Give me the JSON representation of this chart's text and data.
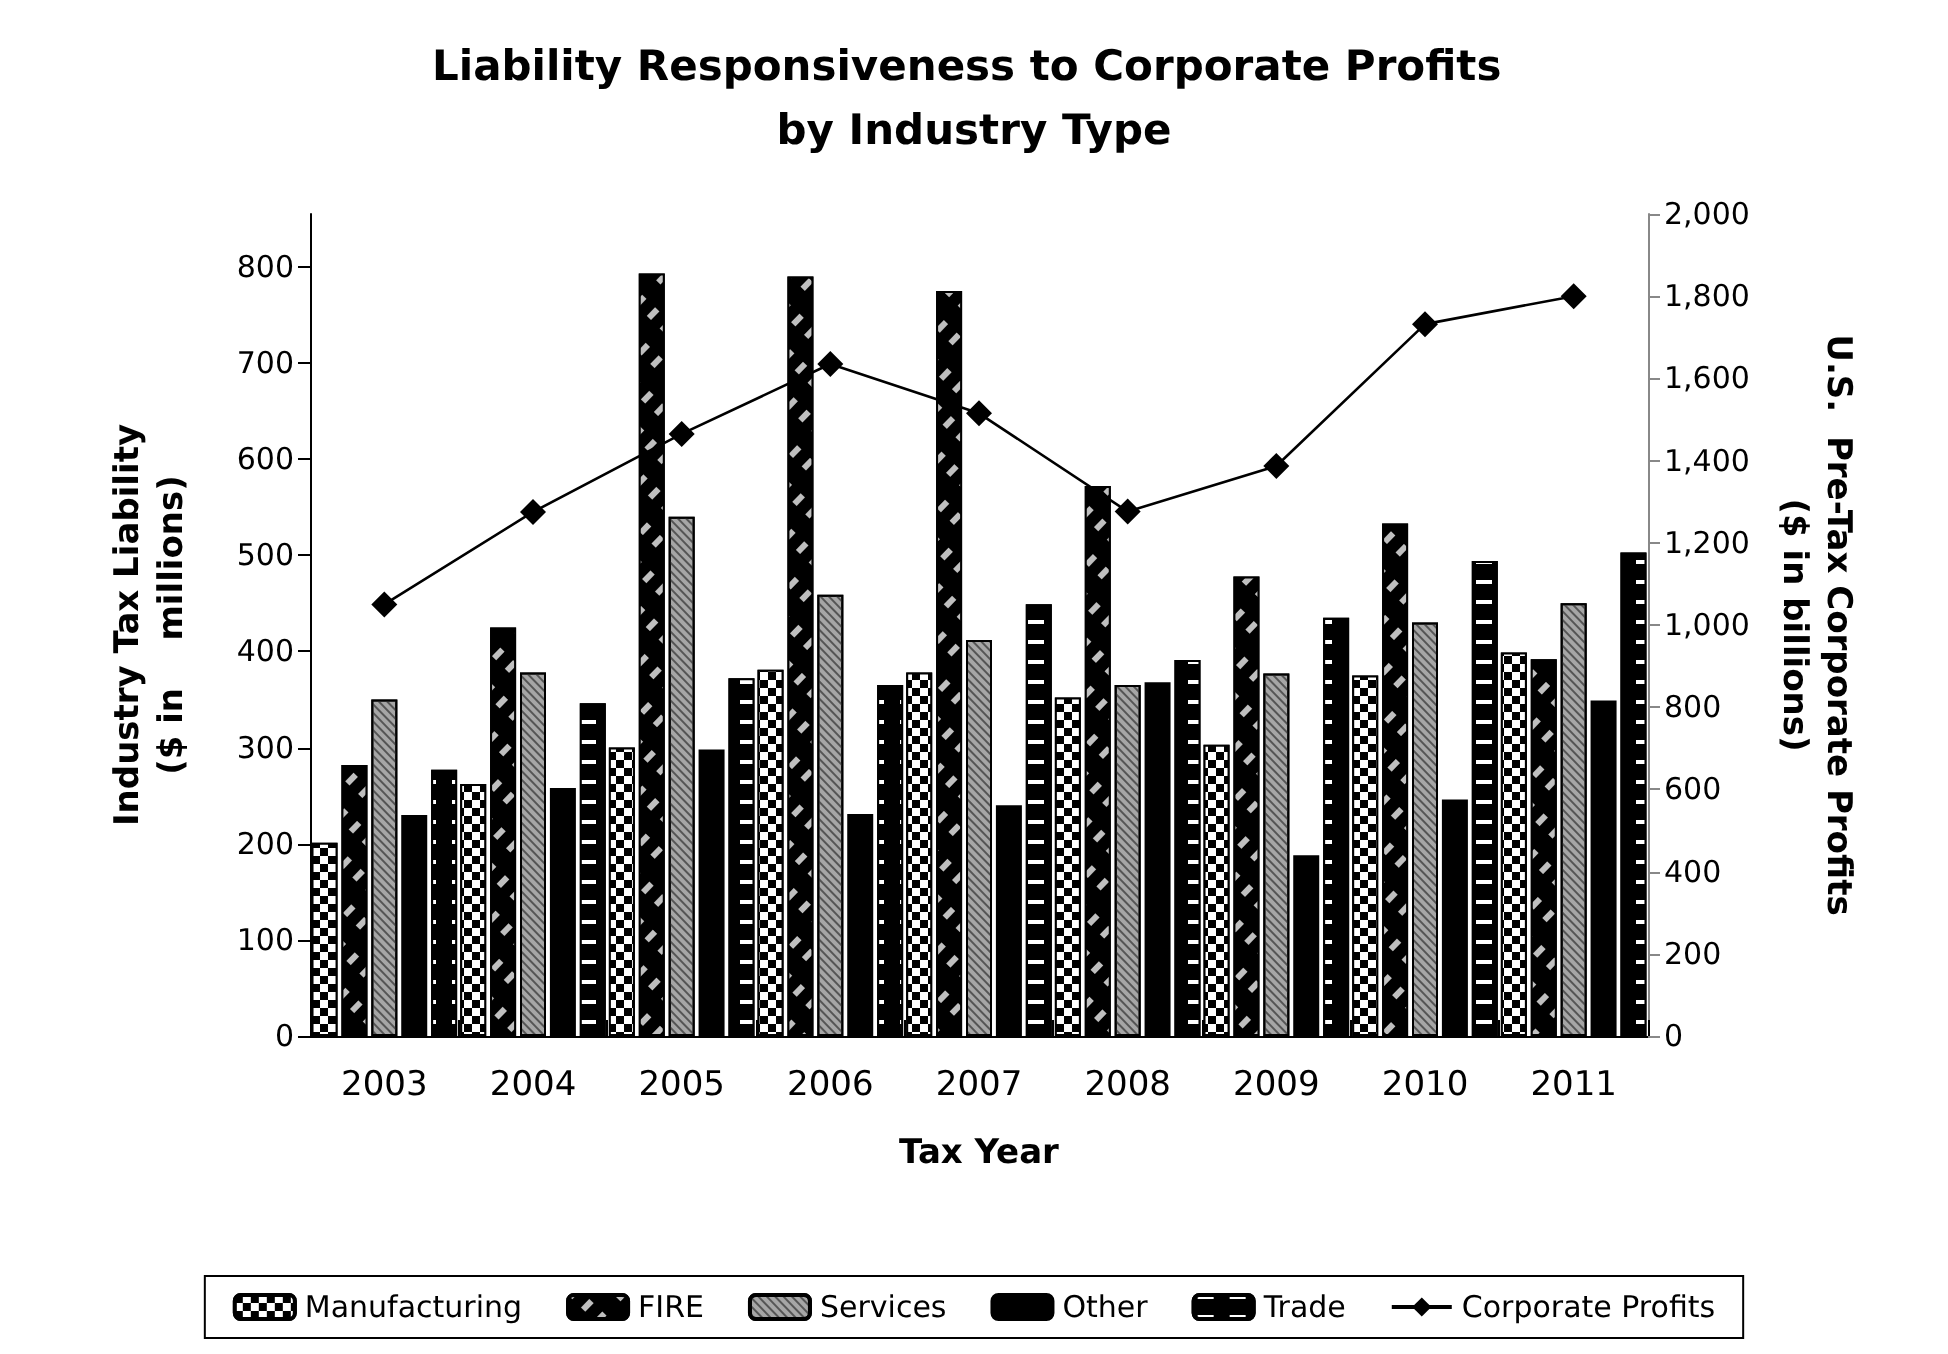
{
  "chart_data": {
    "type": "bar",
    "title": "Liability Responsiveness to Corporate Profits by Industry Type",
    "xlabel": "Tax Year",
    "ylabel": "Industry Tax Liability\n($ in    millions)",
    "y2label": "U.S.  Pre-Tax Corporate Profits\n($ in billions)",
    "categories": [
      "2003",
      "2004",
      "2005",
      "2006",
      "2007",
      "2008",
      "2009",
      "2010",
      "2011"
    ],
    "series": [
      {
        "name": "Manufacturing",
        "color": "#000000",
        "values": [
          201,
          262,
          300,
          381,
          378,
          352,
          303,
          375,
          399
        ]
      },
      {
        "name": "FIRE",
        "color": "#000000",
        "values": [
          282,
          425,
          793,
          790,
          775,
          572,
          478,
          533,
          392
        ]
      },
      {
        "name": "Services",
        "color": "#a6a6a6",
        "values": [
          350,
          378,
          540,
          459,
          412,
          365,
          377,
          430,
          450
        ]
      },
      {
        "name": "Other",
        "color": "#000000",
        "values": [
          230,
          258,
          298,
          231,
          240,
          368,
          188,
          246,
          349
        ]
      },
      {
        "name": "Trade",
        "color": "#000000",
        "values": [
          277,
          346,
          372,
          365,
          449,
          391,
          435,
          494,
          503
        ]
      },
      {
        "name": "Corporate Profits",
        "type": "line",
        "axis": "y2",
        "color": "#000000",
        "marker": "diamond",
        "values": [
          1050,
          1275,
          1465,
          1635,
          1515,
          1276,
          1387,
          1732,
          1800
        ]
      }
    ],
    "ylim": [
      0,
      855
    ],
    "yticks": [
      0,
      100,
      200,
      300,
      400,
      500,
      600,
      700,
      800
    ],
    "y2lim": [
      0,
      2000
    ],
    "y2ticks": [
      0,
      {
        "value": 200,
        "label": "200"
      },
      {
        "value": 400,
        "label": "400"
      },
      {
        "value": 600,
        "label": "600"
      },
      {
        "value": 800,
        "label": "800"
      },
      {
        "value": 1000,
        "label": "1,000"
      },
      {
        "value": 1200,
        "label": "1,200"
      },
      {
        "value": 1400,
        "label": "1,400"
      },
      {
        "value": 1600,
        "label": "1,600"
      },
      {
        "value": 1800,
        "label": "1,800"
      },
      {
        "value": 2000,
        "label": "2,000"
      }
    ],
    "grid": false,
    "legend": "bottom"
  }
}
